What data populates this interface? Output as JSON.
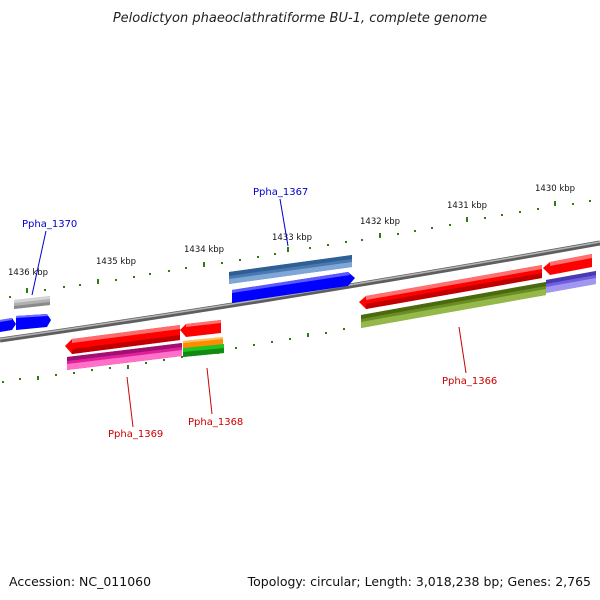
{
  "title": "Pelodictyon phaeoclathratiforme BU-1, complete genome",
  "footer": {
    "accession": "Accession: NC_011060",
    "summary": "Topology: circular; Length: 3,018,238 bp; Genes: 2,765"
  },
  "colors": {
    "backbone": "#808080",
    "tick": "#2e7d10",
    "label_forward": "#0000cc",
    "label_reverse": "#cc0000"
  },
  "ticks": [
    {
      "kbp": 1436,
      "label": "1436 kbp"
    },
    {
      "kbp": 1435,
      "label": "1435 kbp"
    },
    {
      "kbp": 1434,
      "label": "1434 kbp"
    },
    {
      "kbp": 1433,
      "label": "1433 kbp"
    },
    {
      "kbp": 1432,
      "label": "1432 kbp"
    },
    {
      "kbp": 1431,
      "label": "1431 kbp"
    },
    {
      "kbp": 1430,
      "label": "1430 kbp"
    }
  ],
  "gene_labels": [
    {
      "name": "Ppha_1370",
      "strand": "forward"
    },
    {
      "name": "Ppha_1367",
      "strand": "forward"
    },
    {
      "name": "Ppha_1369",
      "strand": "reverse"
    },
    {
      "name": "Ppha_1368",
      "strand": "reverse"
    },
    {
      "name": "Ppha_1366",
      "strand": "reverse"
    }
  ]
}
